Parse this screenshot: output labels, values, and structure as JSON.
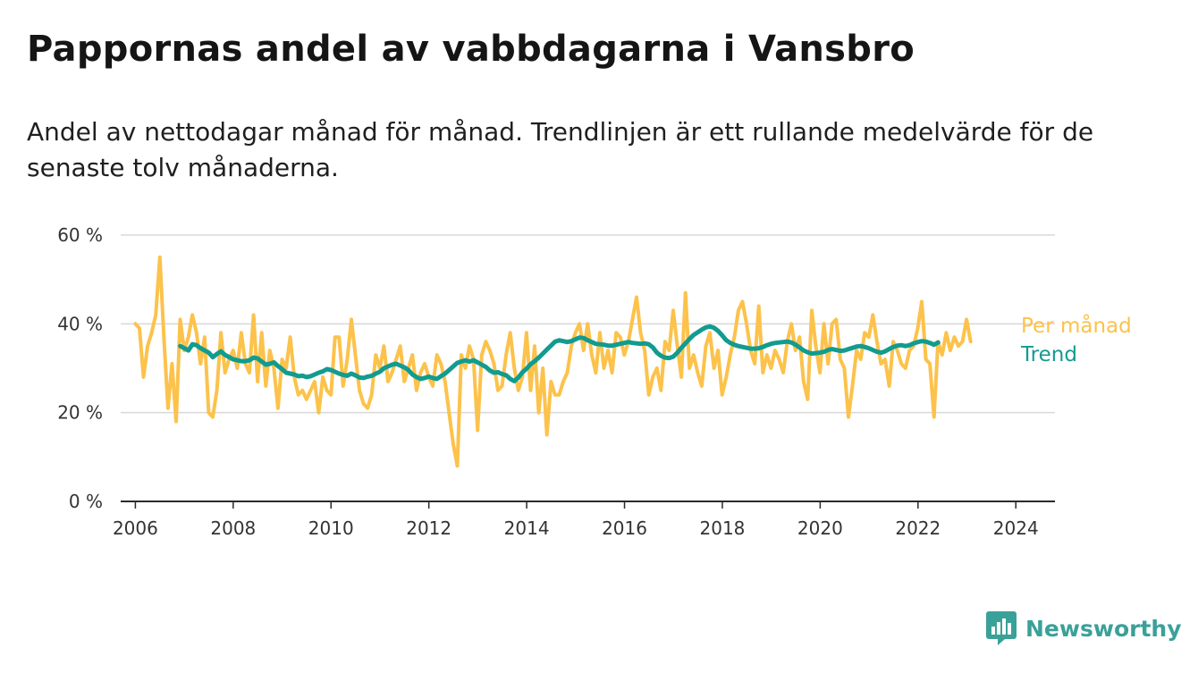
{
  "title": "Pappornas andel av vabbdagarna i Vansbro",
  "subtitle": "Andel av nettodagar månad för månad. Trendlinjen är ett rullande medelvärde för de senaste tolv månaderna.",
  "brand": {
    "name": "Newsworthy",
    "icon": "newsworthy-logo-icon",
    "color": "#3aa199"
  },
  "chart_data": {
    "type": "line",
    "xlabel": "",
    "ylabel": "",
    "xlim": [
      2005.7,
      2024.8
    ],
    "ylim": [
      0,
      60
    ],
    "yticks": [
      0,
      20,
      40,
      60
    ],
    "ytick_labels": [
      "0 %",
      "20 %",
      "40 %",
      "60 %"
    ],
    "xticks": [
      2006,
      2008,
      2010,
      2012,
      2014,
      2016,
      2018,
      2020,
      2022,
      2024
    ],
    "xtick_labels": [
      "2006",
      "2008",
      "2010",
      "2012",
      "2014",
      "2016",
      "2018",
      "2020",
      "2022",
      "2024"
    ],
    "grid": "horizontal",
    "legend": "right, end of lines",
    "series": [
      {
        "name": "Per månad",
        "color": "#fcc24b",
        "start": 2006.0,
        "step": 0.0833,
        "values": [
          40,
          39,
          28,
          35,
          38,
          42,
          55,
          37,
          21,
          31,
          18,
          41,
          34,
          37,
          42,
          38,
          31,
          37,
          20,
          19,
          25,
          38,
          29,
          32,
          34,
          30,
          38,
          31,
          29,
          42,
          27,
          38,
          26,
          34,
          30,
          21,
          32,
          30,
          37,
          28,
          24,
          25,
          23,
          25,
          27,
          20,
          28,
          25,
          24,
          37,
          37,
          26,
          32,
          41,
          33,
          25,
          22,
          21,
          24,
          33,
          30,
          35,
          27,
          29,
          32,
          35,
          27,
          30,
          33,
          25,
          29,
          31,
          28,
          26,
          33,
          31,
          27,
          20,
          13,
          8,
          33,
          30,
          35,
          32,
          16,
          33,
          36,
          34,
          31,
          25,
          26,
          33,
          38,
          30,
          25,
          28,
          38,
          25,
          35,
          20,
          30,
          15,
          27,
          24,
          24,
          27,
          29,
          35,
          38,
          40,
          34,
          40,
          33,
          29,
          38,
          30,
          34,
          29,
          38,
          37,
          33,
          36,
          41,
          46,
          38,
          34,
          24,
          28,
          30,
          25,
          36,
          34,
          43,
          35,
          28,
          47,
          30,
          33,
          29,
          26,
          35,
          38,
          30,
          34,
          24,
          28,
          33,
          37,
          43,
          45,
          40,
          34,
          31,
          44,
          29,
          33,
          30,
          34,
          32,
          29,
          36,
          40,
          34,
          37,
          27,
          23,
          43,
          35,
          29,
          40,
          31,
          40,
          41,
          32,
          30,
          19,
          26,
          34,
          32,
          38,
          37,
          42,
          36,
          31,
          32,
          26,
          36,
          34,
          31,
          30,
          34,
          35,
          39,
          45,
          32,
          31,
          19,
          36,
          33,
          38,
          34,
          37,
          35,
          36,
          41,
          36
        ]
      },
      {
        "name": "Trend",
        "color": "#129b8f",
        "start": 2006.9167,
        "step": 0.0833,
        "values": [
          35,
          34.5,
          34,
          35.4,
          35.2,
          34.5,
          34,
          33.5,
          32.5,
          33.2,
          33.8,
          33,
          32.5,
          32,
          31.8,
          31.6,
          31.6,
          31.8,
          32.4,
          32.2,
          31.5,
          30.8,
          31,
          31.3,
          30.5,
          29.8,
          29,
          28.8,
          28.6,
          28.2,
          28.3,
          28,
          28.2,
          28.6,
          29,
          29.3,
          29.8,
          29.6,
          29.2,
          28.8,
          28.5,
          28.3,
          28.8,
          28.4,
          27.9,
          27.8,
          28.1,
          28.3,
          28.8,
          29.2,
          30,
          30.4,
          30.8,
          31,
          30.6,
          30.2,
          29.6,
          28.6,
          28,
          27.6,
          27.8,
          28.1,
          27.8,
          27.6,
          28.2,
          28.8,
          29.6,
          30.4,
          31.2,
          31.5,
          31.8,
          31.5,
          31.8,
          31.3,
          30.8,
          30.3,
          29.5,
          29,
          29.1,
          28.7,
          28.4,
          27.6,
          27.1,
          27.9,
          29.1,
          29.9,
          30.9,
          31.6,
          32.4,
          33.3,
          34.2,
          35.1,
          36,
          36.3,
          36.1,
          35.9,
          36.1,
          36.5,
          36.9,
          36.8,
          36.3,
          35.9,
          35.5,
          35.4,
          35.3,
          35.1,
          35.1,
          35.3,
          35.5,
          35.7,
          35.9,
          35.7,
          35.6,
          35.5,
          35.6,
          35.4,
          34.7,
          33.5,
          32.8,
          32.4,
          32.3,
          32.6,
          33.5,
          34.6,
          35.6,
          36.6,
          37.5,
          38.1,
          38.7,
          39.2,
          39.4,
          39.1,
          38.4,
          37.4,
          36.3,
          35.7,
          35.3,
          35,
          34.8,
          34.6,
          34.4,
          34.4,
          34.5,
          34.8,
          35.2,
          35.5,
          35.7,
          35.8,
          35.9,
          36,
          35.8,
          35.3,
          34.7,
          34,
          33.6,
          33.3,
          33.4,
          33.5,
          33.7,
          34.1,
          34.3,
          34.1,
          33.9,
          34,
          34.3,
          34.6,
          34.9,
          35,
          34.8,
          34.5,
          34.1,
          33.7,
          33.5,
          33.8,
          34.3,
          34.8,
          35.1,
          35.2,
          35,
          35.2,
          35.6,
          35.9,
          36.1,
          36,
          35.7,
          35.3,
          35.8
        ]
      }
    ]
  }
}
